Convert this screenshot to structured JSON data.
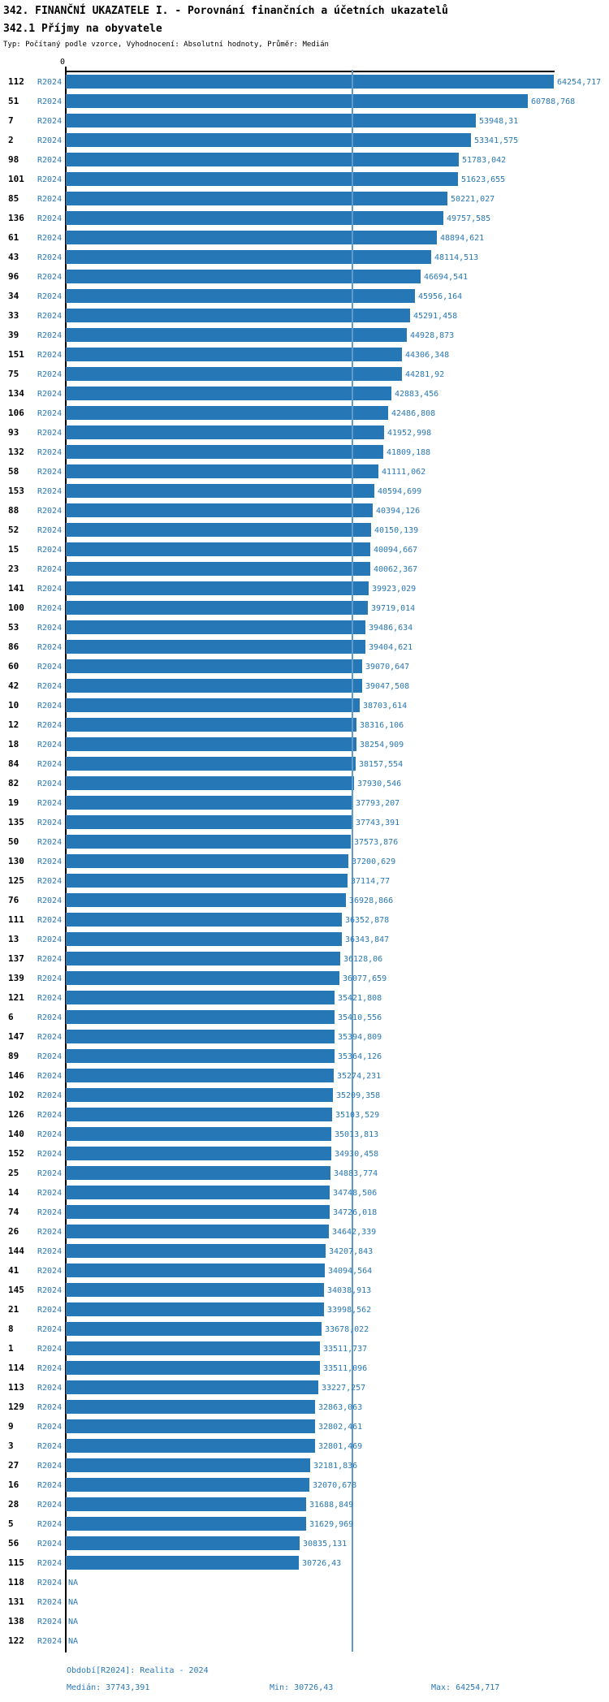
{
  "header": {
    "title": "342. FINANČNÍ UKAZATELE I. - Porovnání finančních a účetních ukazatelů",
    "subtitle": "342.1 Příjmy na obyvatele",
    "meta": "Typ: Počítaný podle vzorce, Vyhodnocení: Absolutní hodnoty, Průměr: Medián"
  },
  "colors": {
    "bar": "#2577b5",
    "text_blue": "#2878b5",
    "median_line": "#5e9bcd",
    "axis": "#000000"
  },
  "chart_data": {
    "type": "bar",
    "orientation": "horizontal",
    "title": "342.1 Příjmy na obyvatele",
    "series_name": "R2024",
    "axis_origin_label": "0",
    "axis_max": 64254.717,
    "median": 37743.391,
    "min": 30726.43,
    "max": 64254.717,
    "grid": "median-line-only",
    "rows": [
      {
        "id": "112",
        "period": "R2024",
        "value": 64254.717,
        "label": "64254,717"
      },
      {
        "id": "51",
        "period": "R2024",
        "value": 60788.768,
        "label": "60788,768"
      },
      {
        "id": "7",
        "period": "R2024",
        "value": 53948.31,
        "label": "53948,31"
      },
      {
        "id": "2",
        "period": "R2024",
        "value": 53341.575,
        "label": "53341,575"
      },
      {
        "id": "98",
        "period": "R2024",
        "value": 51783.042,
        "label": "51783,042"
      },
      {
        "id": "101",
        "period": "R2024",
        "value": 51623.655,
        "label": "51623,655"
      },
      {
        "id": "85",
        "period": "R2024",
        "value": 50221.027,
        "label": "50221,027"
      },
      {
        "id": "136",
        "period": "R2024",
        "value": 49757.585,
        "label": "49757,585"
      },
      {
        "id": "61",
        "period": "R2024",
        "value": 48894.621,
        "label": "48894,621"
      },
      {
        "id": "43",
        "period": "R2024",
        "value": 48114.513,
        "label": "48114,513"
      },
      {
        "id": "96",
        "period": "R2024",
        "value": 46694.541,
        "label": "46694,541"
      },
      {
        "id": "34",
        "period": "R2024",
        "value": 45956.164,
        "label": "45956,164"
      },
      {
        "id": "33",
        "period": "R2024",
        "value": 45291.458,
        "label": "45291,458"
      },
      {
        "id": "39",
        "period": "R2024",
        "value": 44928.873,
        "label": "44928,873"
      },
      {
        "id": "151",
        "period": "R2024",
        "value": 44306.348,
        "label": "44306,348"
      },
      {
        "id": "75",
        "period": "R2024",
        "value": 44281.92,
        "label": "44281,92"
      },
      {
        "id": "134",
        "period": "R2024",
        "value": 42883.456,
        "label": "42883,456"
      },
      {
        "id": "106",
        "period": "R2024",
        "value": 42486.808,
        "label": "42486,808"
      },
      {
        "id": "93",
        "period": "R2024",
        "value": 41952.998,
        "label": "41952,998"
      },
      {
        "id": "132",
        "period": "R2024",
        "value": 41809.188,
        "label": "41809,188"
      },
      {
        "id": "58",
        "period": "R2024",
        "value": 41111.062,
        "label": "41111,062"
      },
      {
        "id": "153",
        "period": "R2024",
        "value": 40594.699,
        "label": "40594,699"
      },
      {
        "id": "88",
        "period": "R2024",
        "value": 40394.126,
        "label": "40394,126"
      },
      {
        "id": "52",
        "period": "R2024",
        "value": 40150.139,
        "label": "40150,139"
      },
      {
        "id": "15",
        "period": "R2024",
        "value": 40094.667,
        "label": "40094,667"
      },
      {
        "id": "23",
        "period": "R2024",
        "value": 40062.367,
        "label": "40062,367"
      },
      {
        "id": "141",
        "period": "R2024",
        "value": 39923.029,
        "label": "39923,029"
      },
      {
        "id": "100",
        "period": "R2024",
        "value": 39719.014,
        "label": "39719,014"
      },
      {
        "id": "53",
        "period": "R2024",
        "value": 39486.634,
        "label": "39486,634"
      },
      {
        "id": "86",
        "period": "R2024",
        "value": 39404.621,
        "label": "39404,621"
      },
      {
        "id": "60",
        "period": "R2024",
        "value": 39070.647,
        "label": "39070,647"
      },
      {
        "id": "42",
        "period": "R2024",
        "value": 39047.508,
        "label": "39047,508"
      },
      {
        "id": "10",
        "period": "R2024",
        "value": 38703.614,
        "label": "38703,614"
      },
      {
        "id": "12",
        "period": "R2024",
        "value": 38316.106,
        "label": "38316,106"
      },
      {
        "id": "18",
        "period": "R2024",
        "value": 38254.909,
        "label": "38254,909"
      },
      {
        "id": "84",
        "period": "R2024",
        "value": 38157.554,
        "label": "38157,554"
      },
      {
        "id": "82",
        "period": "R2024",
        "value": 37930.546,
        "label": "37930,546"
      },
      {
        "id": "19",
        "period": "R2024",
        "value": 37793.207,
        "label": "37793,207"
      },
      {
        "id": "135",
        "period": "R2024",
        "value": 37743.391,
        "label": "37743,391"
      },
      {
        "id": "50",
        "period": "R2024",
        "value": 37573.876,
        "label": "37573,876"
      },
      {
        "id": "130",
        "period": "R2024",
        "value": 37200.629,
        "label": "37200,629"
      },
      {
        "id": "125",
        "period": "R2024",
        "value": 37114.77,
        "label": "37114,77"
      },
      {
        "id": "76",
        "period": "R2024",
        "value": 36928.866,
        "label": "36928,866"
      },
      {
        "id": "111",
        "period": "R2024",
        "value": 36352.878,
        "label": "36352,878"
      },
      {
        "id": "13",
        "period": "R2024",
        "value": 36343.847,
        "label": "36343,847"
      },
      {
        "id": "137",
        "period": "R2024",
        "value": 36128.06,
        "label": "36128,06"
      },
      {
        "id": "139",
        "period": "R2024",
        "value": 36077.659,
        "label": "36077,659"
      },
      {
        "id": "121",
        "period": "R2024",
        "value": 35421.808,
        "label": "35421,808"
      },
      {
        "id": "6",
        "period": "R2024",
        "value": 35410.556,
        "label": "35410,556"
      },
      {
        "id": "147",
        "period": "R2024",
        "value": 35394.809,
        "label": "35394,809"
      },
      {
        "id": "89",
        "period": "R2024",
        "value": 35364.126,
        "label": "35364,126"
      },
      {
        "id": "146",
        "period": "R2024",
        "value": 35274.231,
        "label": "35274,231"
      },
      {
        "id": "102",
        "period": "R2024",
        "value": 35209.358,
        "label": "35209,358"
      },
      {
        "id": "126",
        "period": "R2024",
        "value": 35103.529,
        "label": "35103,529"
      },
      {
        "id": "140",
        "period": "R2024",
        "value": 35013.813,
        "label": "35013,813"
      },
      {
        "id": "152",
        "period": "R2024",
        "value": 34930.458,
        "label": "34930,458"
      },
      {
        "id": "25",
        "period": "R2024",
        "value": 34883.774,
        "label": "34883,774"
      },
      {
        "id": "14",
        "period": "R2024",
        "value": 34748.506,
        "label": "34748,506"
      },
      {
        "id": "74",
        "period": "R2024",
        "value": 34726.018,
        "label": "34726,018"
      },
      {
        "id": "26",
        "period": "R2024",
        "value": 34642.339,
        "label": "34642,339"
      },
      {
        "id": "144",
        "period": "R2024",
        "value": 34207.843,
        "label": "34207,843"
      },
      {
        "id": "41",
        "period": "R2024",
        "value": 34094.564,
        "label": "34094,564"
      },
      {
        "id": "145",
        "period": "R2024",
        "value": 34038.913,
        "label": "34038,913"
      },
      {
        "id": "21",
        "period": "R2024",
        "value": 33998.562,
        "label": "33998,562"
      },
      {
        "id": "8",
        "period": "R2024",
        "value": 33678.022,
        "label": "33678,022"
      },
      {
        "id": "1",
        "period": "R2024",
        "value": 33511.737,
        "label": "33511,737"
      },
      {
        "id": "114",
        "period": "R2024",
        "value": 33511.096,
        "label": "33511,096"
      },
      {
        "id": "113",
        "period": "R2024",
        "value": 33227.257,
        "label": "33227,257"
      },
      {
        "id": "129",
        "period": "R2024",
        "value": 32863.063,
        "label": "32863,063"
      },
      {
        "id": "9",
        "period": "R2024",
        "value": 32802.461,
        "label": "32802,461"
      },
      {
        "id": "3",
        "period": "R2024",
        "value": 32801.469,
        "label": "32801,469"
      },
      {
        "id": "27",
        "period": "R2024",
        "value": 32181.836,
        "label": "32181,836"
      },
      {
        "id": "16",
        "period": "R2024",
        "value": 32070.678,
        "label": "32070,678"
      },
      {
        "id": "28",
        "period": "R2024",
        "value": 31688.849,
        "label": "31688,849"
      },
      {
        "id": "5",
        "period": "R2024",
        "value": 31629.969,
        "label": "31629,969"
      },
      {
        "id": "56",
        "period": "R2024",
        "value": 30835.131,
        "label": "30835,131"
      },
      {
        "id": "115",
        "period": "R2024",
        "value": 30726.43,
        "label": "30726,43"
      },
      {
        "id": "118",
        "period": "R2024",
        "value": null,
        "label": "NA"
      },
      {
        "id": "131",
        "period": "R2024",
        "value": null,
        "label": "NA"
      },
      {
        "id": "138",
        "period": "R2024",
        "value": null,
        "label": "NA"
      },
      {
        "id": "122",
        "period": "R2024",
        "value": null,
        "label": "NA"
      }
    ]
  },
  "footer": {
    "period_line": "Období[R2024]: Realita - 2024",
    "median_label": "Medián: 37743,391",
    "min_label": "Min: 30726,43",
    "max_label": "Max: 64254,717"
  }
}
